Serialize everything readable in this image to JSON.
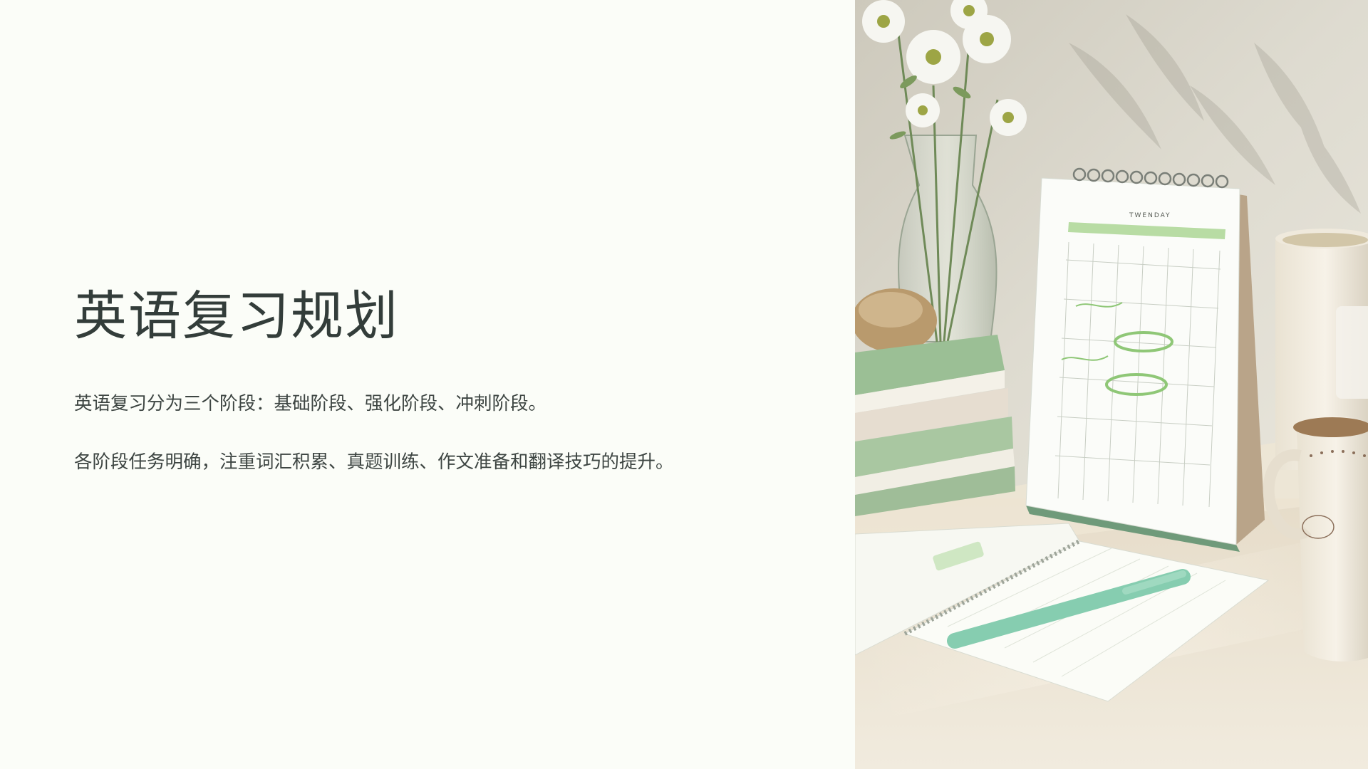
{
  "slide": {
    "title": "英语复习规划",
    "paragraphs": [
      "英语复习分为三个阶段：基础阶段、强化阶段、冲刺阶段。",
      "各阶段任务明确，注重词汇积累、真题训练、作文准备和翻译技巧的提升。"
    ]
  },
  "photo": {
    "calendar_heading": "TWENDAY"
  },
  "colors": {
    "background": "#fbfdf8",
    "title": "#333d3a",
    "body_text": "#3d4542",
    "accent_green": "#9fd18a"
  }
}
